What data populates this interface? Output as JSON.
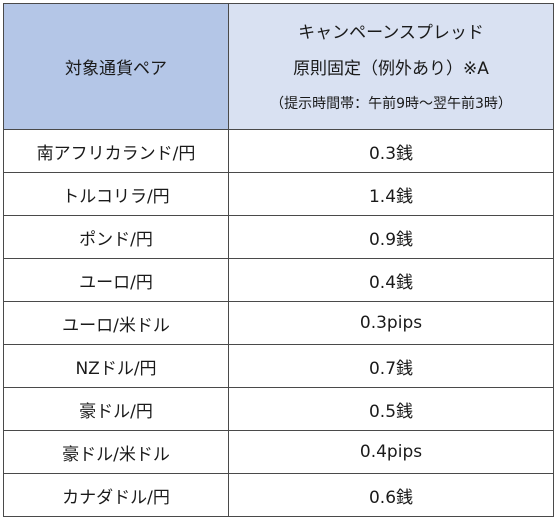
{
  "header": {
    "pair_label": "対象通貨ペア",
    "spread_line1": "キャンペーンスプレッド",
    "spread_line2": "原則固定（例外あり）※A",
    "spread_line3": "（提示時間帯：午前9時～翌午前3時）"
  },
  "rows": [
    {
      "pair": "南アフリカランド/円",
      "spread": "0.3銭"
    },
    {
      "pair": "トルコリラ/円",
      "spread": "1.4銭"
    },
    {
      "pair": "ポンド/円",
      "spread": "0.9銭"
    },
    {
      "pair": "ユーロ/円",
      "spread": "0.4銭"
    },
    {
      "pair": "ユーロ/米ドル",
      "spread": "0.3pips"
    },
    {
      "pair": "NZドル/円",
      "spread": "0.7銭"
    },
    {
      "pair": "豪ドル/円",
      "spread": "0.5銭"
    },
    {
      "pair": "豪ドル/米ドル",
      "spread": "0.4pips"
    },
    {
      "pair": "カナダドル/円",
      "spread": "0.6銭"
    }
  ],
  "colors": {
    "header_pair_bg": "#b4c6e7",
    "header_spread_bg": "#d9e1f2",
    "border": "#4a4a4a"
  }
}
